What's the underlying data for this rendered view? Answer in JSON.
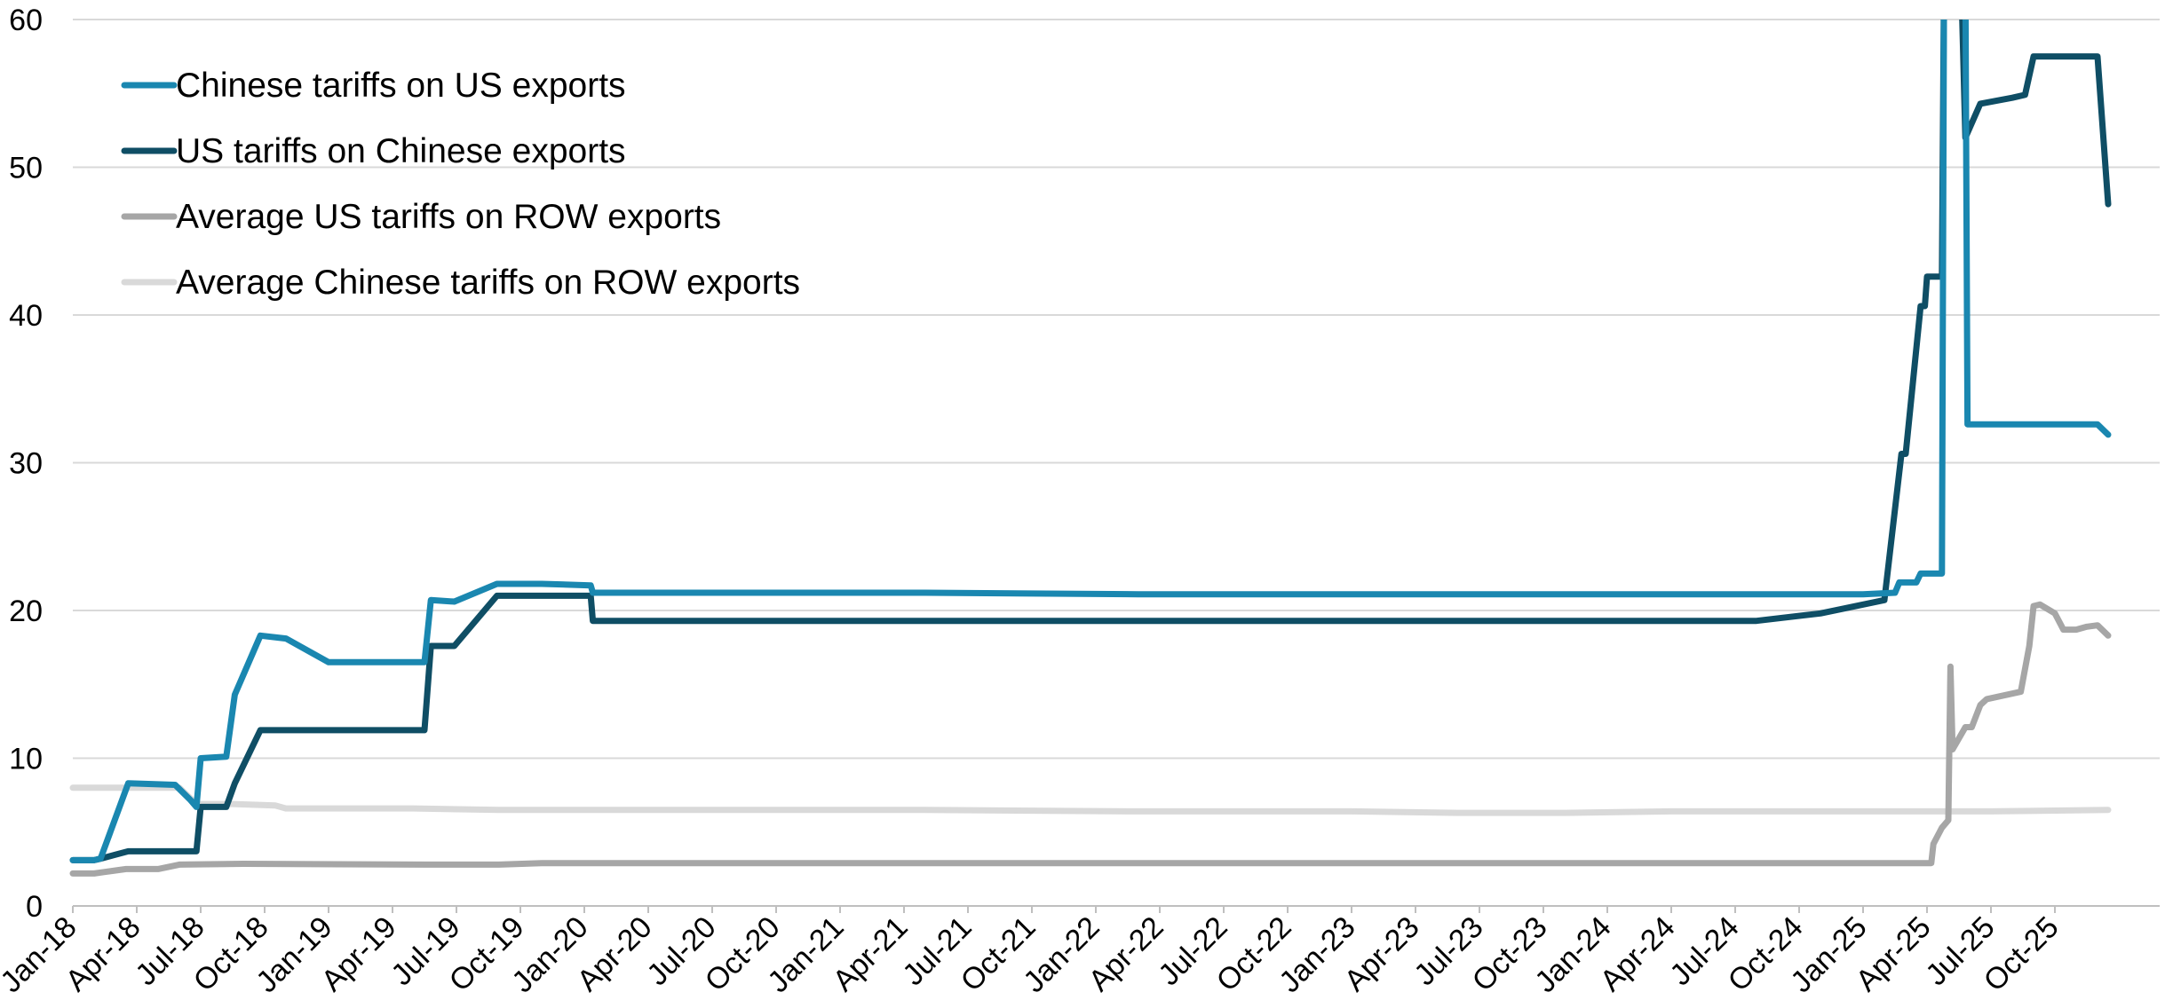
{
  "chart_data": {
    "type": "line",
    "title": "",
    "xlabel": "",
    "ylabel": "",
    "ylim": [
      0,
      60
    ],
    "yticks": [
      0,
      10,
      20,
      30,
      40,
      50,
      60
    ],
    "xlim": [
      0,
      95
    ],
    "grid": "horizontal",
    "legend_position": "top-left",
    "x_tick_labels": [
      "Jan-18",
      "Apr-18",
      "Jul-18",
      "Oct-18",
      "Jan-19",
      "Apr-19",
      "Jul-19",
      "Oct-19",
      "Jan-20",
      "Apr-20",
      "Jul-20",
      "Oct-20",
      "Jan-21",
      "Apr-21",
      "Jul-21",
      "Oct-21",
      "Jan-22",
      "Apr-22",
      "Jul-22",
      "Oct-22",
      "Jan-23",
      "Apr-23",
      "Jul-23",
      "Oct-23",
      "Jan-24",
      "Apr-24",
      "Jul-24",
      "Oct-24",
      "Jan-25",
      "Apr-25",
      "Jul-25",
      "Oct-25"
    ],
    "x_unit_note_months_from": "Jan-18",
    "series": [
      {
        "name": "Chinese tariffs on US exports",
        "color": "#1a87b0",
        "points": [
          [
            0,
            3.1
          ],
          [
            1,
            3.1
          ],
          [
            1.3,
            3.2
          ],
          [
            2.6,
            8.3
          ],
          [
            4.8,
            8.2
          ],
          [
            5.5,
            7.2
          ],
          [
            5.8,
            6.7
          ],
          [
            6.0,
            10.0
          ],
          [
            7.2,
            10.1
          ],
          [
            7.6,
            14.3
          ],
          [
            8.8,
            18.3
          ],
          [
            10.0,
            18.1
          ],
          [
            12.0,
            16.5
          ],
          [
            15.0,
            16.5
          ],
          [
            16.5,
            16.5
          ],
          [
            16.8,
            20.7
          ],
          [
            17.9,
            20.6
          ],
          [
            19.9,
            21.8
          ],
          [
            22.0,
            21.8
          ],
          [
            24.3,
            21.7
          ],
          [
            24.4,
            21.2
          ],
          [
            30,
            21.2
          ],
          [
            40,
            21.2
          ],
          [
            50,
            21.1
          ],
          [
            60,
            21.1
          ],
          [
            70,
            21.1
          ],
          [
            80,
            21.1
          ],
          [
            84,
            21.1
          ],
          [
            85.5,
            21.2
          ],
          [
            85.7,
            21.9
          ],
          [
            86.5,
            21.9
          ],
          [
            86.7,
            22.5
          ],
          [
            87.7,
            22.5
          ],
          [
            87.8,
            63
          ],
          [
            88.8,
            63
          ],
          [
            88.9,
            32.6
          ],
          [
            90,
            32.6
          ],
          [
            95,
            32.6
          ],
          [
            95.5,
            31.9
          ]
        ]
      },
      {
        "name": "US tariffs on Chinese exports",
        "color": "#0f4e65",
        "points": [
          [
            0,
            3.1
          ],
          [
            1,
            3.1
          ],
          [
            1.3,
            3.2
          ],
          [
            2.6,
            3.7
          ],
          [
            5.8,
            3.7
          ],
          [
            6.0,
            6.7
          ],
          [
            7.2,
            6.7
          ],
          [
            7.6,
            8.3
          ],
          [
            8.8,
            11.9
          ],
          [
            12.0,
            11.9
          ],
          [
            16.5,
            11.9
          ],
          [
            16.8,
            17.6
          ],
          [
            17.9,
            17.6
          ],
          [
            19.9,
            21.0
          ],
          [
            22.0,
            21.0
          ],
          [
            24.3,
            21.0
          ],
          [
            24.4,
            19.3
          ],
          [
            30,
            19.3
          ],
          [
            40,
            19.3
          ],
          [
            50,
            19.3
          ],
          [
            60,
            19.3
          ],
          [
            70,
            19.3
          ],
          [
            75,
            19.3
          ],
          [
            79,
            19.3
          ],
          [
            82,
            19.8
          ],
          [
            85,
            20.7
          ],
          [
            85.8,
            30.6
          ],
          [
            86,
            30.6
          ],
          [
            86.7,
            40.6
          ],
          [
            86.9,
            40.6
          ],
          [
            87.0,
            42.6
          ],
          [
            87.7,
            42.6
          ],
          [
            87.8,
            63
          ],
          [
            88.6,
            63
          ],
          [
            88.8,
            52
          ],
          [
            89.5,
            54.3
          ],
          [
            91.0,
            54.7
          ],
          [
            91.6,
            54.9
          ],
          [
            92.0,
            57.5
          ],
          [
            94.0,
            57.5
          ],
          [
            95.0,
            57.5
          ],
          [
            95.5,
            47.5
          ]
        ]
      },
      {
        "name": "Average US tariffs on ROW exports",
        "color": "#a6a6a6",
        "points": [
          [
            0,
            2.2
          ],
          [
            1,
            2.2
          ],
          [
            1.5,
            2.3
          ],
          [
            2.5,
            2.5
          ],
          [
            4,
            2.5
          ],
          [
            5,
            2.8
          ],
          [
            8,
            2.85
          ],
          [
            16.5,
            2.8
          ],
          [
            20,
            2.8
          ],
          [
            22,
            2.9
          ],
          [
            30,
            2.9
          ],
          [
            40,
            2.9
          ],
          [
            50,
            2.9
          ],
          [
            60,
            2.9
          ],
          [
            70,
            2.9
          ],
          [
            80,
            2.9
          ],
          [
            87.2,
            2.9
          ],
          [
            87.3,
            4.2
          ],
          [
            87.7,
            5.3
          ],
          [
            88.0,
            5.8
          ],
          [
            88.1,
            16.2
          ],
          [
            88.2,
            10.6
          ],
          [
            88.6,
            11.6
          ],
          [
            88.8,
            12.1
          ],
          [
            89.1,
            12.1
          ],
          [
            89.5,
            13.6
          ],
          [
            89.8,
            14.0
          ],
          [
            91.4,
            14.5
          ],
          [
            91.8,
            17.6
          ],
          [
            92.0,
            20.3
          ],
          [
            92.3,
            20.4
          ],
          [
            93.0,
            19.8
          ],
          [
            93.4,
            18.7
          ],
          [
            94.0,
            18.7
          ],
          [
            94.5,
            18.9
          ],
          [
            95.0,
            19.0
          ],
          [
            95.5,
            18.3
          ]
        ]
      },
      {
        "name": "Average Chinese tariffs on ROW exports",
        "color": "#d9d9d9",
        "points": [
          [
            0,
            8.0
          ],
          [
            5,
            8.0
          ],
          [
            5.8,
            6.9
          ],
          [
            7.5,
            6.9
          ],
          [
            9.5,
            6.8
          ],
          [
            10.0,
            6.6
          ],
          [
            16,
            6.6
          ],
          [
            20,
            6.5
          ],
          [
            30,
            6.5
          ],
          [
            40,
            6.5
          ],
          [
            50,
            6.4
          ],
          [
            60,
            6.4
          ],
          [
            65,
            6.3
          ],
          [
            70,
            6.3
          ],
          [
            75,
            6.4
          ],
          [
            80,
            6.4
          ],
          [
            90,
            6.4
          ],
          [
            95.5,
            6.5
          ]
        ]
      }
    ]
  }
}
